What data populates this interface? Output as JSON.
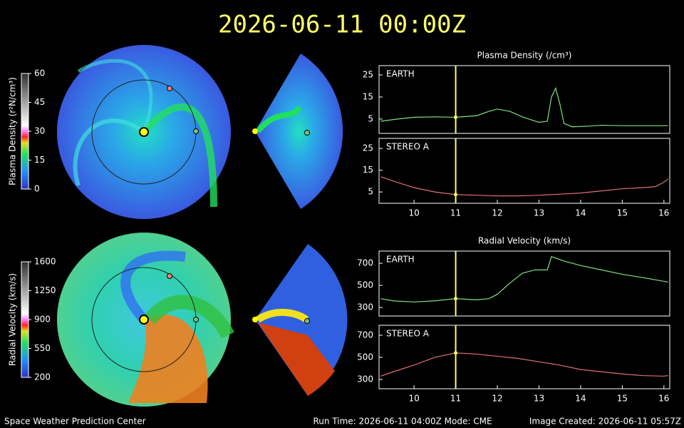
{
  "header": {
    "title": "2026-06-11 00:00Z"
  },
  "footer": {
    "left": "Space Weather Prediction Center",
    "center": "Run Time: 2026-06-11 04:00Z  Mode: CME",
    "right": "Image Created: 2026-06-11 05:57Z"
  },
  "chart_data": [
    {
      "type": "colorbar",
      "title": "Plasma Density (r²N/cm³)",
      "ylim": [
        0,
        60
      ],
      "yticks": [
        0,
        15,
        30,
        45,
        60
      ]
    },
    {
      "type": "colorbar",
      "title": "Radial Velocity (km/s)",
      "ylim": [
        200,
        1600
      ],
      "yticks": [
        200,
        550,
        900,
        1250,
        1600
      ]
    },
    {
      "type": "line",
      "title": "Plasma Density (/cm³)",
      "label": "EARTH",
      "xlim": [
        9.16,
        16.14
      ],
      "ylim": [
        -1.5,
        29.2
      ],
      "yticks": [
        5,
        15,
        25
      ],
      "marker_x": 11,
      "marker_color": "#ffff66",
      "series": [
        {
          "name": "EARTH",
          "color": "#7fe07f",
          "x": [
            9.2,
            9.6,
            10,
            10.5,
            11,
            11.5,
            11.8,
            12,
            12.3,
            12.6,
            13,
            13.2,
            13.3,
            13.4,
            13.5,
            13.6,
            13.8,
            14.2,
            14.5,
            15,
            16.1
          ],
          "values": [
            4,
            5,
            5.8,
            6,
            5.8,
            6.5,
            8.5,
            9.5,
            8.5,
            6,
            3.5,
            4,
            15,
            19,
            12,
            3,
            1.5,
            1.8,
            2.2,
            2,
            2
          ]
        }
      ]
    },
    {
      "type": "line",
      "label": "STEREO A",
      "xlim": [
        9.16,
        16.14
      ],
      "ylim": [
        -0.2,
        29.6
      ],
      "yticks": [
        5,
        15,
        25
      ],
      "xticks": [
        10,
        11,
        12,
        13,
        14,
        15,
        16
      ],
      "marker_x": 11,
      "marker_color": "#ffff66",
      "series": [
        {
          "name": "STEREO A",
          "color": "#e07070",
          "x": [
            9.2,
            9.5,
            10,
            10.5,
            11,
            11.5,
            12,
            12.5,
            13,
            13.5,
            14,
            14.5,
            15,
            15.5,
            15.8,
            16,
            16.1
          ],
          "values": [
            12,
            10,
            7,
            5,
            3.8,
            3.5,
            3.2,
            3.2,
            3.5,
            4,
            4.5,
            5.5,
            6.5,
            7,
            7.5,
            9.5,
            11
          ]
        }
      ]
    },
    {
      "type": "line",
      "title": "Radial Velocity (km/s)",
      "label": "EARTH",
      "xlim": [
        9.16,
        16.14
      ],
      "ylim": [
        223,
        810
      ],
      "yticks": [
        300,
        500,
        700
      ],
      "marker_x": 11,
      "marker_color": "#ffff66",
      "series": [
        {
          "name": "EARTH",
          "color": "#7fe07f",
          "x": [
            9.2,
            9.5,
            10,
            10.5,
            11,
            11.5,
            11.8,
            12,
            12.3,
            12.6,
            12.9,
            13.2,
            13.3,
            13.6,
            14,
            14.5,
            15,
            15.5,
            16.1
          ],
          "values": [
            380,
            360,
            350,
            360,
            380,
            370,
            380,
            420,
            520,
            610,
            640,
            640,
            760,
            720,
            680,
            640,
            600,
            570,
            530
          ]
        }
      ]
    },
    {
      "type": "line",
      "label": "STEREO A",
      "xlim": [
        9.16,
        16.14
      ],
      "ylim": [
        216,
        790
      ],
      "yticks": [
        300,
        500,
        700
      ],
      "xticks": [
        10,
        11,
        12,
        13,
        14,
        15,
        16
      ],
      "marker_x": 11,
      "marker_color": "#ffff66",
      "series": [
        {
          "name": "STEREO A",
          "color": "#e07070",
          "x": [
            9.2,
            9.5,
            10,
            10.5,
            11,
            11.5,
            12,
            12.5,
            13,
            13.5,
            14,
            14.5,
            15,
            15.5,
            16,
            16.1
          ],
          "values": [
            330,
            370,
            430,
            500,
            540,
            530,
            510,
            490,
            460,
            430,
            390,
            370,
            350,
            335,
            330,
            335
          ]
        }
      ]
    }
  ]
}
